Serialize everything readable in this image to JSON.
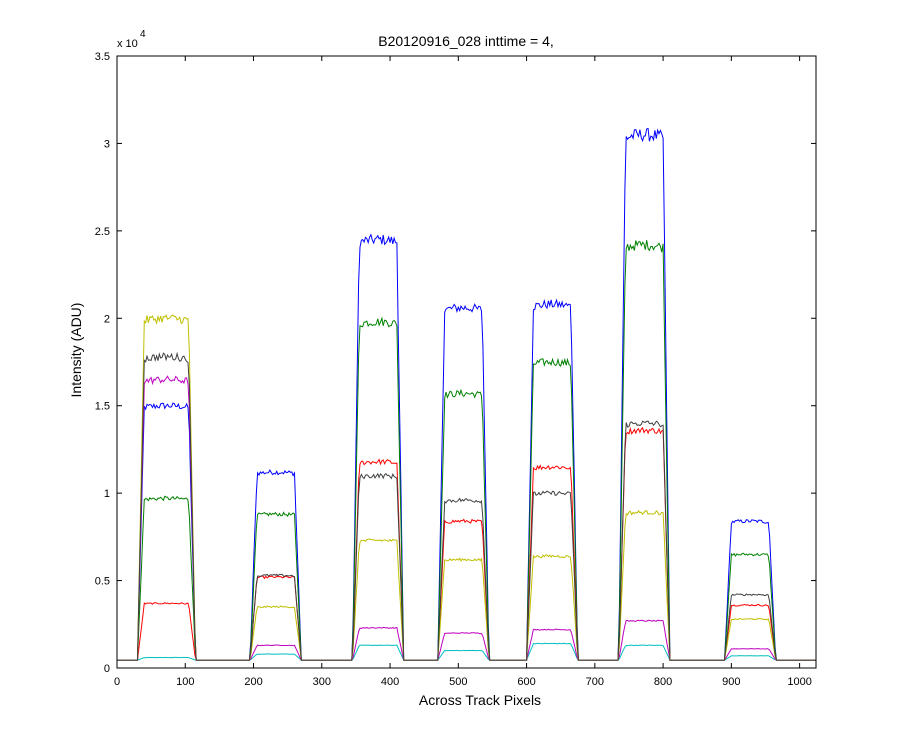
{
  "chart_data": {
    "type": "line",
    "title": "B20120916_028 inttime = 4,",
    "xlabel": "Across Track Pixels",
    "ylabel": "Intensity (ADU)",
    "y_multiplier_base": "x 10",
    "y_multiplier_exponent": "4",
    "xlim": [
      0,
      1024
    ],
    "ylim": [
      0,
      3.5
    ],
    "x_ticks": [
      0,
      100,
      200,
      300,
      400,
      500,
      600,
      700,
      800,
      900,
      1000
    ],
    "y_ticks": [
      0,
      0.5,
      1,
      1.5,
      2,
      2.5,
      3,
      3.5
    ],
    "x_tick_labels": [
      "0",
      "100",
      "200",
      "300",
      "400",
      "500",
      "600",
      "700",
      "800",
      "900",
      "1000"
    ],
    "y_tick_labels": [
      "0",
      "0.5",
      "1",
      "1.5",
      "2",
      "2.5",
      "3",
      "3.5"
    ],
    "grid": false,
    "baseline": 0.045,
    "plateaus": [
      {
        "start": 35,
        "end": 110
      },
      {
        "start": 200,
        "end": 265
      },
      {
        "start": 350,
        "end": 415
      },
      {
        "start": 475,
        "end": 540
      },
      {
        "start": 605,
        "end": 670
      },
      {
        "start": 740,
        "end": 805
      },
      {
        "start": 895,
        "end": 960
      }
    ],
    "series": [
      {
        "color": "#0000ff",
        "levels": [
          1.5,
          1.12,
          2.45,
          2.06,
          2.08,
          3.05,
          0.84
        ]
      },
      {
        "color": "#008000",
        "levels": [
          0.97,
          0.88,
          1.98,
          1.57,
          1.75,
          2.42,
          0.65
        ]
      },
      {
        "color": "#ff0000",
        "levels": [
          0.37,
          0.52,
          1.18,
          0.84,
          1.15,
          1.36,
          0.36
        ]
      },
      {
        "color": "#00bfbf",
        "levels": [
          0.06,
          0.08,
          0.13,
          0.1,
          0.14,
          0.13,
          0.07
        ]
      },
      {
        "color": "#bf00bf",
        "levels": [
          1.65,
          0.13,
          0.23,
          0.2,
          0.22,
          0.27,
          0.11
        ]
      },
      {
        "color": "#bfbf00",
        "levels": [
          2.0,
          0.35,
          0.73,
          0.62,
          0.64,
          0.89,
          0.28
        ]
      },
      {
        "color": "#404040",
        "levels": [
          1.78,
          0.53,
          1.1,
          0.96,
          1.0,
          1.4,
          0.42
        ]
      }
    ]
  }
}
